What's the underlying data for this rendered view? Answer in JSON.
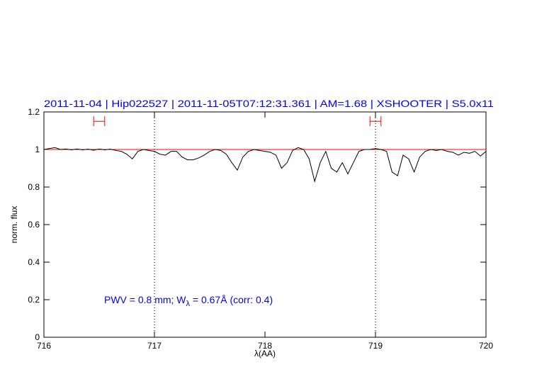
{
  "chart_data": {
    "type": "line",
    "title": "2011-11-04 | Hip022527 | 2011-11-05T07:12:31.361 | AM=1.68 | XSHOOTER | S5.0x11",
    "xlabel": "λ(AA)",
    "ylabel": "norm. flux",
    "annotation_parts": [
      "PWV = 0.8 mm; W",
      "λ",
      " = 0.67Å (corr: 0.4)"
    ],
    "xlim": [
      716,
      720
    ],
    "ylim": [
      0,
      1.2
    ],
    "xticks": [
      716,
      717,
      718,
      719,
      720
    ],
    "yticks": [
      0,
      0.2,
      0.4,
      0.6,
      0.8,
      1,
      1.2
    ],
    "x": [
      716.0,
      716.05,
      716.1,
      716.15,
      716.2,
      716.25,
      716.3,
      716.35,
      716.4,
      716.45,
      716.5,
      716.55,
      716.6,
      716.65,
      716.7,
      716.75,
      716.8,
      716.85,
      716.9,
      716.95,
      717.0,
      717.05,
      717.1,
      717.15,
      717.2,
      717.25,
      717.3,
      717.35,
      717.4,
      717.45,
      717.5,
      717.55,
      717.6,
      717.65,
      717.7,
      717.75,
      717.8,
      717.85,
      717.9,
      717.95,
      718.0,
      718.05,
      718.1,
      718.15,
      718.2,
      718.25,
      718.3,
      718.35,
      718.4,
      718.45,
      718.5,
      718.55,
      718.6,
      718.65,
      718.7,
      718.75,
      718.8,
      718.85,
      718.9,
      718.95,
      719.0,
      719.05,
      719.1,
      719.15,
      719.2,
      719.25,
      719.3,
      719.35,
      719.4,
      719.45,
      719.5,
      719.55,
      719.6,
      719.65,
      719.7,
      719.75,
      719.8,
      719.85,
      719.9,
      719.95,
      720.0
    ],
    "spectrum": {
      "color": "#000000",
      "values": [
        1.0,
        1.005,
        1.01,
        1.0,
        1.003,
        0.998,
        1.003,
        0.998,
        1.002,
        0.996,
        1.003,
        0.998,
        1.002,
        0.995,
        0.99,
        0.975,
        0.95,
        0.99,
        1.0,
        0.995,
        0.99,
        0.975,
        0.97,
        0.99,
        0.99,
        0.96,
        0.945,
        0.945,
        0.955,
        0.97,
        0.99,
        1.0,
        0.995,
        0.975,
        0.93,
        0.89,
        0.96,
        0.99,
        1.0,
        0.995,
        0.99,
        0.985,
        0.97,
        0.9,
        0.93,
        0.995,
        1.01,
        1.0,
        0.95,
        0.83,
        0.93,
        0.99,
        0.9,
        0.88,
        0.93,
        0.87,
        0.93,
        0.99,
        1.0,
        1.0,
        1.005,
        1.0,
        0.99,
        0.88,
        0.86,
        0.97,
        0.95,
        0.88,
        0.96,
        0.99,
        1.0,
        0.995,
        1.0,
        0.99,
        0.985,
        0.97,
        0.985,
        0.98,
        0.99,
        0.965,
        0.99
      ]
    },
    "continuum": {
      "color": "#ff0000",
      "x": [
        716,
        720
      ],
      "values": [
        1,
        1
      ]
    },
    "vlines": [
      717,
      719
    ],
    "ranges": {
      "color": "#ff0000",
      "items": [
        {
          "x": [
            716.45,
            716.55
          ],
          "y": 1.15
        },
        {
          "x": [
            718.95,
            719.05
          ],
          "y": 1.15
        }
      ]
    }
  }
}
